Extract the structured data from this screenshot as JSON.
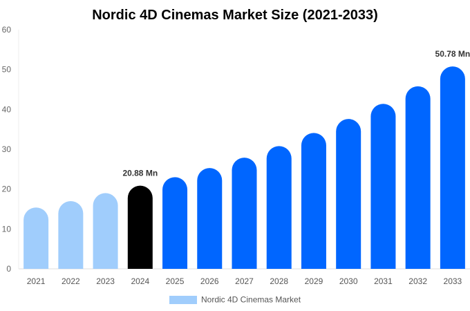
{
  "chart_data": {
    "type": "bar",
    "title": "Nordic 4D Cinemas Market Size (2021-2033)",
    "xlabel": "",
    "ylabel": "",
    "ylim": [
      0,
      60
    ],
    "yticks": [
      0,
      10,
      20,
      30,
      40,
      50,
      60
    ],
    "grid": false,
    "legend_position": "bottom",
    "categories": [
      "2021",
      "2022",
      "2023",
      "2024",
      "2025",
      "2026",
      "2027",
      "2028",
      "2029",
      "2030",
      "2031",
      "2032",
      "2033"
    ],
    "series": [
      {
        "name": "Nordic 4D Cinemas Market",
        "values": [
          15.4,
          17.0,
          19.0,
          20.88,
          23.0,
          25.3,
          27.9,
          30.8,
          34.1,
          37.6,
          41.4,
          45.8,
          50.78
        ]
      }
    ],
    "bar_colors": [
      "#a0cdfc",
      "#a0cdfc",
      "#a0cdfc",
      "#000000",
      "#0066ff",
      "#0066ff",
      "#0066ff",
      "#0066ff",
      "#0066ff",
      "#0066ff",
      "#0066ff",
      "#0066ff",
      "#0066ff"
    ],
    "legend_color": "#a0cdfc",
    "data_labels": [
      {
        "category": "2024",
        "text": "20.88 Mn"
      },
      {
        "category": "2033",
        "text": "50.78 Mn"
      }
    ]
  }
}
